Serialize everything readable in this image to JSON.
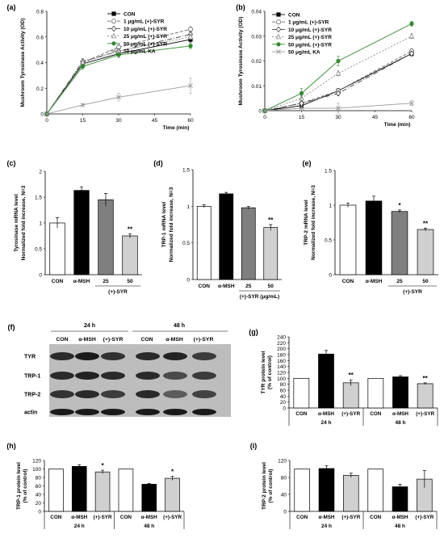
{
  "figure": {
    "panels": [
      {
        "id": "a",
        "label": "(a)",
        "type": "line",
        "ylabel": "Mushroom Tyrosinase Activity (OD)",
        "xlabel": "Time (min)",
        "x": [
          0,
          15,
          30,
          60
        ],
        "ylim": [
          0,
          0.8
        ],
        "yticks": [
          "0",
          "0.2",
          "0.4",
          "0.6",
          "0.8"
        ],
        "xticks": [
          "0",
          "15",
          "30",
          "45",
          "60"
        ],
        "series": [
          {
            "name": "CON",
            "color": "#000000",
            "marker": "square",
            "dash": "",
            "values": [
              0,
              0.39,
              0.47,
              0.58
            ],
            "err": [
              0,
              0.02,
              0.02,
              0.02
            ]
          },
          {
            "name": "1 μg/mL (+)-SYR",
            "color": "#666666",
            "marker": "circle-open",
            "dash": "4,2",
            "values": [
              0,
              0.4,
              0.52,
              0.66
            ],
            "err": [
              0,
              0.02,
              0.02,
              0.02
            ]
          },
          {
            "name": "10 μg/mL (+)-SYR",
            "color": "#444444",
            "marker": "diamond-open",
            "dash": "6,2,1,2",
            "values": [
              0,
              0.41,
              0.49,
              0.62
            ],
            "err": [
              0,
              0.02,
              0.02,
              0.02
            ]
          },
          {
            "name": "25 μg/mL (+)-SYR",
            "color": "#888888",
            "marker": "triangle-open",
            "dash": "2,2",
            "values": [
              0,
              0.4,
              0.49,
              0.6
            ],
            "err": [
              0,
              0.02,
              0.02,
              0.02
            ]
          },
          {
            "name": "50 μg/mL (+)-SYR",
            "color": "#2e8b2e",
            "marker": "circle",
            "dash": "",
            "values": [
              0,
              0.37,
              0.46,
              0.53
            ],
            "err": [
              0,
              0.02,
              0.02,
              0.02
            ]
          },
          {
            "name": "50 μg/mL KA",
            "color": "#999999",
            "marker": "x",
            "dash": "",
            "values": [
              0,
              0.07,
              0.13,
              0.22
            ],
            "err": [
              0,
              0.01,
              0.03,
              0.06
            ]
          }
        ]
      },
      {
        "id": "b",
        "label": "(b)",
        "type": "line",
        "ylabel": "Mushroom Tyrosinase Activity (OD)",
        "xlabel": "Time (min)",
        "x": [
          0,
          15,
          30,
          60
        ],
        "ylim": [
          0,
          0.04
        ],
        "yticks": [
          "0",
          "0.01",
          "0.02",
          "0.03",
          "0.04"
        ],
        "xticks": [
          "0",
          "15",
          "30",
          "45",
          "60"
        ],
        "series": [
          {
            "name": "CON",
            "color": "#000000",
            "marker": "square",
            "dash": "",
            "values": [
              0,
              0.002,
              0.008,
              0.023
            ],
            "err": [
              0,
              0.001,
              0.001,
              0.001
            ]
          },
          {
            "name": "1 μg/mL (+)-SYR",
            "color": "#666666",
            "marker": "circle-open",
            "dash": "4,2",
            "values": [
              0,
              0.003,
              0.008,
              0.024
            ],
            "err": [
              0,
              0.001,
              0.001,
              0.001
            ]
          },
          {
            "name": "10 μg/mL (+)-SYR",
            "color": "#444444",
            "marker": "diamond-open",
            "dash": "6,2,1,2",
            "values": [
              0,
              0.003,
              0.007,
              0.023
            ],
            "err": [
              0,
              0.001,
              0.001,
              0.001
            ]
          },
          {
            "name": "25 μg/mL (+)-SYR",
            "color": "#888888",
            "marker": "triangle-open",
            "dash": "2,2",
            "values": [
              0,
              0.005,
              0.015,
              0.03
            ],
            "err": [
              0,
              0.001,
              0.001,
              0.001
            ]
          },
          {
            "name": "50 μg/mL (+)-SYR",
            "color": "#2e8b2e",
            "marker": "circle",
            "dash": "",
            "values": [
              0,
              0.007,
              0.02,
              0.035
            ],
            "err": [
              0,
              0.002,
              0.002,
              0.001
            ]
          },
          {
            "name": "50 μg/mL KA",
            "color": "#999999",
            "marker": "x",
            "dash": "",
            "values": [
              0,
              0.001,
              0.001,
              0.003
            ],
            "err": [
              0,
              0.001,
              0.002,
              0.001
            ]
          }
        ]
      },
      {
        "id": "c",
        "label": "(c)",
        "type": "bar",
        "ylabel": "Tyrosinase mRNA level",
        "ylabel2": "Normalized fold increase, N=3",
        "ylim": [
          0,
          2
        ],
        "yticks": [
          "0",
          "0.5",
          "1",
          "1.5",
          "2"
        ],
        "categories": [
          "CON",
          "α-MSH",
          "25",
          "50"
        ],
        "values": [
          1.0,
          1.63,
          1.45,
          0.75
        ],
        "err": [
          0.1,
          0.07,
          0.12,
          0.04
        ],
        "colors": [
          "#ffffff",
          "#000000",
          "#7f7f7f",
          "#d0d0d0"
        ],
        "sig": [
          "",
          "",
          "",
          "**"
        ],
        "group_label": "(+)-SYR",
        "group_from": 2
      },
      {
        "id": "d",
        "label": "(d)",
        "type": "bar",
        "ylabel": "TRP-1 mRNA level",
        "ylabel2": "Normalized fold increase, N=3",
        "ylim": [
          0,
          1.5
        ],
        "yticks": [
          "0",
          "0.5",
          "1",
          "1.5"
        ],
        "categories": [
          "CON",
          "α-MSH",
          "25",
          "50"
        ],
        "values": [
          1.0,
          1.17,
          0.98,
          0.71
        ],
        "err": [
          0.02,
          0.02,
          0.02,
          0.04
        ],
        "colors": [
          "#ffffff",
          "#000000",
          "#7f7f7f",
          "#d0d0d0"
        ],
        "sig": [
          "",
          "",
          "",
          "**"
        ],
        "group_label": "(+)-SYR (μg/mL)",
        "group_from": 2
      },
      {
        "id": "e",
        "label": "(e)",
        "type": "bar",
        "ylabel": "TRP-2 mRNA level",
        "ylabel2": "Normalized fold increase, N=3",
        "ylim": [
          0,
          1.5
        ],
        "yticks": [
          "0",
          "0.5",
          "1",
          "1.5"
        ],
        "categories": [
          "CON",
          "α-MSH",
          "25",
          "50"
        ],
        "values": [
          1.0,
          1.06,
          0.91,
          0.65
        ],
        "err": [
          0.03,
          0.07,
          0.02,
          0.02
        ],
        "colors": [
          "#ffffff",
          "#000000",
          "#7f7f7f",
          "#d0d0d0"
        ],
        "sig": [
          "",
          "",
          "*",
          "**"
        ],
        "group_label": "(+)-SYR",
        "group_from": 2
      },
      {
        "id": "g",
        "label": "(g)",
        "type": "grouped",
        "ylabel": "TYR protein level",
        "ylabel2": "(% of control)",
        "ylim": [
          0,
          240
        ],
        "yticks": [
          "0",
          "20",
          "40",
          "60",
          "80",
          "100",
          "120",
          "140",
          "160",
          "180",
          "200",
          "220",
          "240"
        ],
        "ytick_step": 2,
        "categories": [
          "CON",
          "α-MSH",
          "(+)-SYR",
          "CON",
          "α-MSH",
          "(+)-SYR"
        ],
        "values": [
          100,
          182,
          85,
          100,
          105,
          82
        ],
        "err": [
          0,
          12,
          10,
          0,
          4,
          3
        ],
        "sig": [
          "",
          "",
          "**",
          "",
          "",
          "**"
        ],
        "groups": [
          "24 h",
          "48 h"
        ]
      },
      {
        "id": "h",
        "label": "(h)",
        "type": "grouped",
        "ylabel": "TRP-1 protein level",
        "ylabel2": "(% of control)",
        "ylim": [
          0,
          120
        ],
        "yticks": [
          "0",
          "20",
          "40",
          "60",
          "80",
          "100",
          "120"
        ],
        "ytick_step": 1,
        "categories": [
          "CON",
          "α-MSH",
          "(+)-SYR",
          "CON",
          "α-MSH",
          "(+)-SYR"
        ],
        "values": [
          100,
          106,
          93,
          100,
          64,
          78
        ],
        "err": [
          0,
          4,
          4,
          0,
          2,
          5
        ],
        "sig": [
          "",
          "",
          "*",
          "",
          "",
          "*"
        ],
        "groups": [
          "24 h",
          "48 h"
        ]
      },
      {
        "id": "i",
        "label": "(i)",
        "type": "grouped",
        "ylabel": "TRP-2 protein level",
        "ylabel2": "(% of control)",
        "ylim": [
          0,
          120
        ],
        "yticks": [
          "0",
          "40",
          "80",
          "120"
        ],
        "ytick_step": 1,
        "categories": [
          "CON",
          "α-MSH",
          "(+)-SYR",
          "CON",
          "α-MSH",
          "(+)-SYR"
        ],
        "values": [
          100,
          101,
          85,
          100,
          58,
          76
        ],
        "err": [
          0,
          7,
          5,
          0,
          6,
          20
        ],
        "sig": [
          "",
          "",
          "",
          "",
          "",
          ""
        ],
        "groups": [
          "24 h",
          "48 h"
        ]
      }
    ],
    "blot": {
      "label": "(f)",
      "time24": "24 h",
      "time48": "48 h",
      "lanes": [
        "CON",
        "α-MSH",
        "(+)-SYR",
        "CON",
        "α-MSH",
        "(+)-SYR"
      ],
      "rows": [
        "TYR",
        "TRP-1",
        "TRP-2",
        "actin"
      ],
      "colors": {
        "background": "#bdbdbd",
        "band": "#1a1a1a"
      }
    }
  }
}
